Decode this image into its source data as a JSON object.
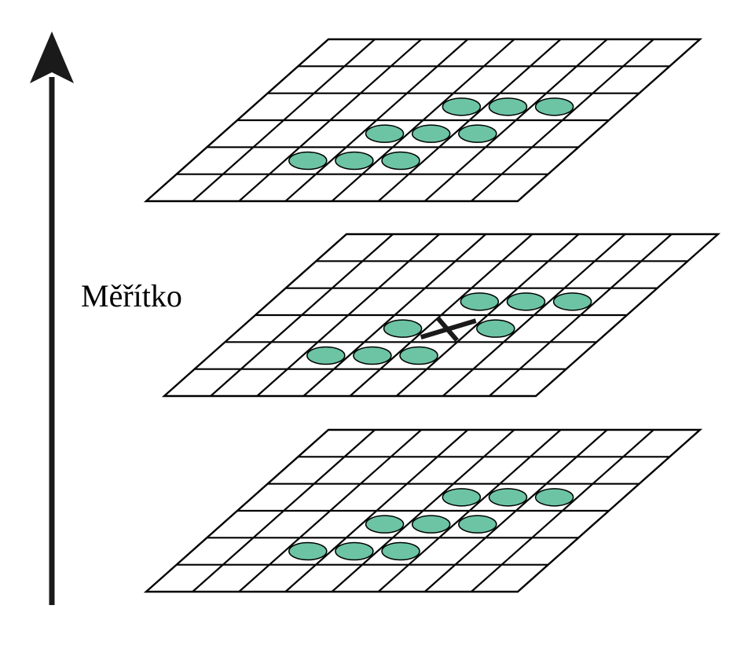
{
  "scale_axis": {
    "label": "Měřítko"
  },
  "colors": {
    "grid_line": "#000000",
    "neighbor_marker": "#6cc4a4",
    "center_marker": "#1a1a1a",
    "arrow": "#1a1a1a",
    "background": "#ffffff"
  },
  "layers": [
    {
      "id": "upper-scale",
      "neighbors": [
        [
          4,
          2
        ],
        [
          5,
          2
        ],
        [
          6,
          2
        ],
        [
          3,
          3
        ],
        [
          4,
          3
        ],
        [
          5,
          3
        ],
        [
          2,
          4
        ],
        [
          3,
          4
        ],
        [
          4,
          4
        ]
      ],
      "center_marker": false
    },
    {
      "id": "current-scale",
      "neighbors": [
        [
          4,
          2
        ],
        [
          5,
          2
        ],
        [
          6,
          2
        ],
        [
          3,
          3
        ],
        [
          5,
          3
        ],
        [
          2,
          4
        ],
        [
          3,
          4
        ],
        [
          4,
          4
        ]
      ],
      "center_marker": true,
      "center_cell": [
        4,
        3
      ]
    },
    {
      "id": "lower-scale",
      "neighbors": [
        [
          4,
          2
        ],
        [
          5,
          2
        ],
        [
          6,
          2
        ],
        [
          3,
          3
        ],
        [
          4,
          3
        ],
        [
          5,
          3
        ],
        [
          2,
          4
        ],
        [
          3,
          4
        ],
        [
          4,
          4
        ]
      ],
      "center_marker": false
    }
  ]
}
